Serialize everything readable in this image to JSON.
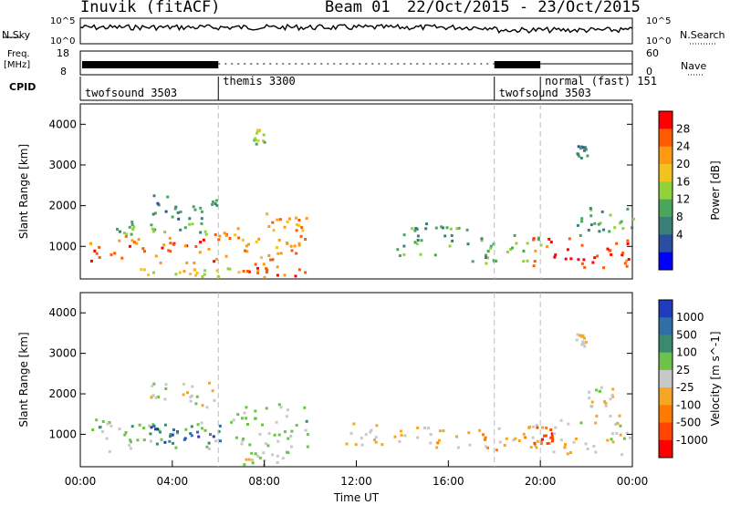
{
  "header": {
    "station": "Inuvik (fitACF)",
    "beam": "Beam 01",
    "date_range": "22/Oct/2015 - 23/Oct/2015"
  },
  "status_panel": {
    "nsky_label": "N.Sky",
    "nsky_ticks": [
      "10^5",
      "10^0"
    ],
    "nsearch_label": "N.Search",
    "nsearch_ticks": [
      "10^5",
      "10^0"
    ],
    "freq_label": "Freq.",
    "freq_unit": "[MHz]",
    "freq_ticks": [
      "18",
      "8"
    ],
    "nave_label": "Nave",
    "nave_ticks": [
      "60",
      "0"
    ],
    "cpid_label": "CPID",
    "cpid_segments": [
      {
        "label": "twofsound 3503",
        "start_hour": 0.0
      },
      {
        "label": "themis 3300",
        "start_hour": 6.0
      },
      {
        "label": "twofsound 3503",
        "start_hour": 18.0
      },
      {
        "label": "normal (fast) 151",
        "start_hour": 20.0
      }
    ]
  },
  "time_axis": {
    "label": "Time UT",
    "ticks": [
      "00:00",
      "04:00",
      "08:00",
      "12:00",
      "16:00",
      "20:00",
      "00:00"
    ]
  },
  "power_colorbar": {
    "label": "Power [dB]",
    "ticks": [
      "28",
      "24",
      "20",
      "16",
      "12",
      "8",
      "4"
    ],
    "colors": [
      "#ff0000",
      "#ff5a00",
      "#ff9a10",
      "#f2c21f",
      "#8fd23b",
      "#4aa65c",
      "#3b7f77",
      "#2c4ea2",
      "#0000ff"
    ]
  },
  "velocity_colorbar": {
    "label": "Velocity [m s^-1]",
    "ticks": [
      "1000",
      "500",
      "100",
      "25",
      "-25",
      "-100",
      "-500",
      "-1000"
    ],
    "colors": [
      "#1f3cc0",
      "#2f6fa8",
      "#3a8a6e",
      "#6dc24a",
      "#c8c8c8",
      "#f5a623",
      "#ff7a00",
      "#ff4500",
      "#ff0000"
    ]
  },
  "chart_data": [
    {
      "type": "heatmap",
      "title": "Power",
      "ylabel": "Slant Range [km]",
      "xlabel": "",
      "xlim": [
        0,
        24
      ],
      "ylim": [
        200,
        4500
      ],
      "yticks": [
        1000,
        2000,
        3000,
        4000
      ],
      "colorbar_label": "Power [dB]",
      "colorbar_range": [
        0,
        32
      ],
      "dashed_vlines_hour": [
        6,
        18,
        20
      ],
      "patches": [
        {
          "t0": 0.2,
          "t1": 5.8,
          "r0": 600,
          "r1": 1300,
          "value": 26
        },
        {
          "t0": 1.5,
          "t1": 5.5,
          "r0": 1300,
          "r1": 1700,
          "value": 13
        },
        {
          "t0": 3.0,
          "t1": 6.0,
          "r0": 1700,
          "r1": 2300,
          "value": 10
        },
        {
          "t0": 5.8,
          "t1": 9.6,
          "r0": 700,
          "r1": 1500,
          "value": 24
        },
        {
          "t0": 8.0,
          "t1": 9.8,
          "r0": 1000,
          "r1": 1900,
          "value": 22
        },
        {
          "t0": 7.0,
          "t1": 10.0,
          "r0": 250,
          "r1": 600,
          "value": 26
        },
        {
          "t0": 2.0,
          "t1": 7.0,
          "r0": 250,
          "r1": 500,
          "value": 18
        },
        {
          "t0": 13.5,
          "t1": 17.0,
          "r0": 800,
          "r1": 1600,
          "value": 12
        },
        {
          "t0": 17.0,
          "t1": 20.0,
          "r0": 600,
          "r1": 1300,
          "value": 14
        },
        {
          "t0": 19.5,
          "t1": 24.0,
          "r0": 500,
          "r1": 1300,
          "value": 28
        },
        {
          "t0": 21.5,
          "t1": 24.0,
          "r0": 1300,
          "r1": 2000,
          "value": 12
        },
        {
          "t0": 7.5,
          "t1": 8.0,
          "r0": 3500,
          "r1": 3900,
          "value": 16
        },
        {
          "t0": 21.5,
          "t1": 22.0,
          "r0": 3200,
          "r1": 3500,
          "value": 10
        }
      ]
    },
    {
      "type": "heatmap",
      "title": "Velocity",
      "ylabel": "Slant Range [km]",
      "xlabel": "Time UT",
      "xlim": [
        0,
        24
      ],
      "ylim": [
        200,
        4500
      ],
      "yticks": [
        1000,
        2000,
        3000,
        4000
      ],
      "colorbar_label": "Velocity [m s^-1]",
      "colorbar_range": [
        -1000,
        1000
      ],
      "dashed_vlines_hour": [
        6,
        18,
        20
      ],
      "patches": [
        {
          "t0": 0.2,
          "t1": 6.0,
          "r0": 600,
          "r1": 1400,
          "value": 150
        },
        {
          "t0": 3.0,
          "t1": 6.2,
          "r0": 800,
          "r1": 1400,
          "value": 700
        },
        {
          "t0": 6.0,
          "t1": 10.0,
          "r0": 700,
          "r1": 1800,
          "value": 150
        },
        {
          "t0": 3.0,
          "t1": 6.0,
          "r0": 1700,
          "r1": 2300,
          "value": 0
        },
        {
          "t0": 7.0,
          "t1": 9.6,
          "r0": 250,
          "r1": 600,
          "value": 60
        },
        {
          "t0": 11.5,
          "t1": 17.0,
          "r0": 700,
          "r1": 1300,
          "value": -120
        },
        {
          "t0": 17.0,
          "t1": 20.2,
          "r0": 600,
          "r1": 1300,
          "value": -200
        },
        {
          "t0": 19.5,
          "t1": 20.5,
          "r0": 800,
          "r1": 1200,
          "value": -700
        },
        {
          "t0": 20.5,
          "t1": 24.0,
          "r0": 500,
          "r1": 1500,
          "value": -80
        },
        {
          "t0": 22.0,
          "t1": 23.2,
          "r0": 1700,
          "r1": 2200,
          "value": 0
        },
        {
          "t0": 21.5,
          "t1": 22.0,
          "r0": 3200,
          "r1": 3500,
          "value": -150
        }
      ]
    }
  ]
}
